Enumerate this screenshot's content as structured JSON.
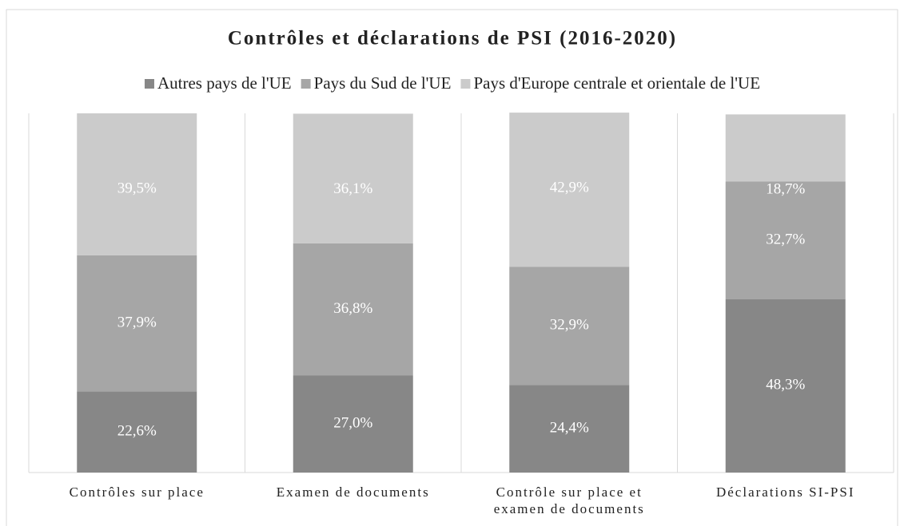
{
  "chart_data": {
    "type": "stacked_bar",
    "title": "Contrôles et déclarations de PSI (2016-2020)",
    "categories": [
      "Contrôles sur place",
      "Examen de documents",
      "Contrôle sur place et examen de documents",
      "Déclarations SI-PSI"
    ],
    "series": [
      {
        "name": "Autres pays de l'UE",
        "color": "#878787",
        "values": [
          22.6,
          27.0,
          24.4,
          48.3
        ],
        "value_labels": [
          "22,6%",
          "27,0%",
          "24,4%",
          "48,3%"
        ]
      },
      {
        "name": "Pays du Sud de l'UE",
        "color": "#a6a6a6",
        "values": [
          37.9,
          36.8,
          32.9,
          32.7
        ],
        "value_labels": [
          "37,9%",
          "36,8%",
          "32,9%",
          "32,7%"
        ]
      },
      {
        "name": "Pays d'Europe centrale et orientale de l'UE",
        "color": "#cbcbcb",
        "values": [
          39.5,
          36.1,
          42.9,
          18.7
        ],
        "value_labels": [
          "39,5%",
          "36,1%",
          "42,9%",
          "18,7%"
        ]
      }
    ],
    "ylim": [
      0,
      100
    ],
    "legend": "top"
  }
}
